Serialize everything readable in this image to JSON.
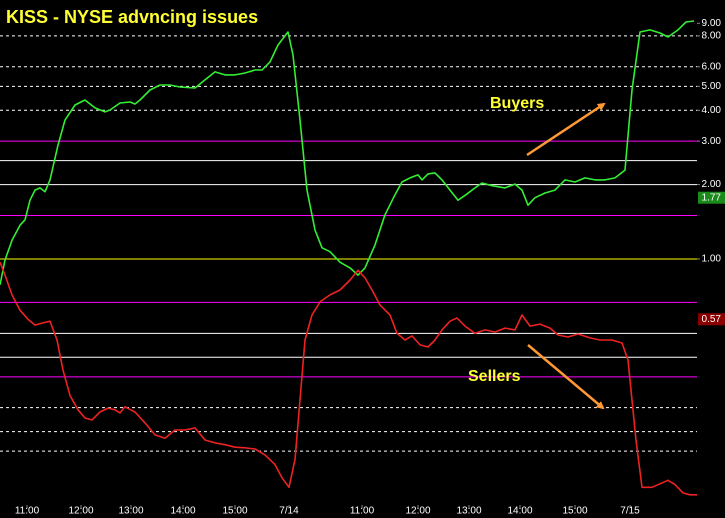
{
  "chart_data": {
    "type": "line",
    "title": "KISS - NYSE advncing issues",
    "log_scale": true,
    "background": "#000000",
    "ylim": [
      0.1009,
      11.18
    ],
    "xlim": [
      0,
      697
    ],
    "yticks": [
      {
        "value": 9,
        "label": "9.00"
      },
      {
        "value": 8,
        "label": "8.00"
      },
      {
        "value": 6,
        "label": "6.00"
      },
      {
        "value": 5,
        "label": "5.00"
      },
      {
        "value": 4,
        "label": "4.00"
      },
      {
        "value": 3,
        "label": "3.00"
      },
      {
        "value": 2,
        "label": "2.00"
      },
      {
        "value": 1,
        "label": "1.00"
      }
    ],
    "xticks": [
      {
        "value": 27,
        "label": "11:00"
      },
      {
        "value": 81,
        "label": "12:00"
      },
      {
        "value": 131,
        "label": "13:00"
      },
      {
        "value": 183,
        "label": "14:00"
      },
      {
        "value": 235,
        "label": "15:00"
      },
      {
        "value": 289,
        "label": "7/14"
      },
      {
        "value": 362,
        "label": "11:00"
      },
      {
        "value": 418,
        "label": "12:00"
      },
      {
        "value": 469,
        "label": "13:00"
      },
      {
        "value": 520,
        "label": "14:00"
      },
      {
        "value": 575,
        "label": "15:00"
      },
      {
        "value": 630,
        "label": "7/15"
      }
    ],
    "reference_lines": [
      {
        "value": 8,
        "color": "#ffffff",
        "style": "dashed"
      },
      {
        "value": 6,
        "color": "#ffffff",
        "style": "dashed"
      },
      {
        "value": 5,
        "color": "#ffffff",
        "style": "dashed"
      },
      {
        "value": 4,
        "color": "#ffffff",
        "style": "dashed"
      },
      {
        "value": 3,
        "color": "#ff00ff",
        "style": "solid"
      },
      {
        "value": 2.5,
        "color": "#ffffff",
        "style": "solid"
      },
      {
        "value": 2,
        "color": "#ffffff",
        "style": "solid"
      },
      {
        "value": 1.5,
        "color": "#ff00ff",
        "style": "solid"
      },
      {
        "value": 1,
        "color": "#ffff00",
        "style": "solid"
      },
      {
        "value": 0.667,
        "color": "#ff00ff",
        "style": "solid"
      },
      {
        "value": 0.5,
        "color": "#ffffff",
        "style": "solid"
      },
      {
        "value": 0.4,
        "color": "#ffffff",
        "style": "solid"
      },
      {
        "value": 0.333,
        "color": "#ff00ff",
        "style": "solid"
      },
      {
        "value": 0.25,
        "color": "#ffffff",
        "style": "dashed"
      },
      {
        "value": 0.2,
        "color": "#ffffff",
        "style": "dashed"
      },
      {
        "value": 0.1667,
        "color": "#ffffff",
        "style": "dashed"
      }
    ],
    "last_value_labels": [
      {
        "value": 1.77,
        "label": "1.77",
        "color": "#1a8a1a"
      },
      {
        "value": 0.57,
        "label": "0.57",
        "color": "#8a0000"
      }
    ],
    "annotations": [
      "Buyers",
      "Sellers"
    ],
    "series": [
      {
        "color": "#33ee33",
        "x": [
          0,
          5,
          12,
          20,
          25,
          30,
          35,
          40,
          45,
          50,
          58,
          65,
          75,
          85,
          95,
          105,
          110,
          120,
          130,
          135,
          140,
          150,
          160,
          170,
          180,
          195,
          205,
          215,
          225,
          235,
          245,
          255,
          262,
          270,
          278,
          288,
          293,
          300,
          307,
          315,
          322,
          330,
          340,
          350,
          358,
          365,
          375,
          385,
          395,
          402,
          410,
          418,
          422,
          428,
          435,
          442,
          450,
          458,
          466,
          475,
          482,
          492,
          505,
          515,
          522,
          528,
          535,
          545,
          555,
          565,
          575,
          585,
          595,
          605,
          615,
          625,
          632,
          640,
          650,
          660,
          668,
          678,
          686,
          694
        ],
        "values": [
          0.785,
          0.99,
          1.19,
          1.37,
          1.44,
          1.73,
          1.9,
          1.94,
          1.87,
          2.09,
          2.89,
          3.65,
          4.2,
          4.4,
          4.09,
          3.94,
          4.01,
          4.28,
          4.32,
          4.24,
          4.4,
          4.83,
          5.06,
          5.06,
          4.97,
          4.92,
          5.31,
          5.72,
          5.56,
          5.56,
          5.66,
          5.82,
          5.82,
          6.28,
          7.35,
          8.3,
          6.7,
          3.65,
          1.9,
          1.31,
          1.11,
          1.07,
          0.97,
          0.92,
          0.86,
          0.92,
          1.14,
          1.51,
          1.82,
          2.05,
          2.13,
          2.19,
          2.09,
          2.21,
          2.23,
          2.09,
          1.9,
          1.73,
          1.82,
          1.94,
          2.03,
          1.98,
          1.94,
          2.01,
          1.9,
          1.65,
          1.77,
          1.85,
          1.9,
          2.09,
          2.05,
          2.13,
          2.09,
          2.09,
          2.13,
          2.29,
          4.83,
          8.3,
          8.46,
          8.22,
          7.92,
          8.46,
          9.11,
          9.19
        ]
      },
      {
        "color": "#ee2222",
        "x": [
          0,
          5,
          12,
          20,
          28,
          35,
          42,
          50,
          57,
          63,
          70,
          78,
          85,
          92,
          100,
          108,
          115,
          120,
          125,
          135,
          145,
          155,
          165,
          175,
          185,
          195,
          205,
          215,
          225,
          235,
          245,
          255,
          265,
          275,
          282,
          289,
          295,
          300,
          305,
          312,
          320,
          330,
          340,
          350,
          358,
          365,
          372,
          380,
          390,
          397,
          405,
          412,
          420,
          428,
          435,
          442,
          450,
          457,
          465,
          475,
          485,
          495,
          505,
          515,
          522,
          530,
          540,
          550,
          558,
          568,
          578,
          590,
          600,
          612,
          622,
          628,
          636,
          642,
          652,
          660,
          668,
          675,
          683,
          690,
          697
        ],
        "values": [
          0.97,
          0.86,
          0.715,
          0.62,
          0.57,
          0.54,
          0.55,
          0.56,
          0.47,
          0.355,
          0.28,
          0.245,
          0.227,
          0.223,
          0.24,
          0.249,
          0.245,
          0.238,
          0.252,
          0.24,
          0.217,
          0.194,
          0.188,
          0.203,
          0.203,
          0.207,
          0.185,
          0.18,
          0.177,
          0.173,
          0.172,
          0.17,
          0.161,
          0.147,
          0.13,
          0.119,
          0.154,
          0.269,
          0.47,
          0.593,
          0.67,
          0.715,
          0.749,
          0.822,
          0.9,
          0.838,
          0.749,
          0.651,
          0.593,
          0.5,
          0.47,
          0.488,
          0.449,
          0.44,
          0.47,
          0.516,
          0.56,
          0.577,
          0.535,
          0.5,
          0.516,
          0.506,
          0.525,
          0.516,
          0.593,
          0.535,
          0.545,
          0.525,
          0.492,
          0.483,
          0.497,
          0.479,
          0.47,
          0.47,
          0.457,
          0.39,
          0.185,
          0.119,
          0.119,
          0.123,
          0.127,
          0.122,
          0.113,
          0.111,
          0.111
        ]
      }
    ]
  }
}
